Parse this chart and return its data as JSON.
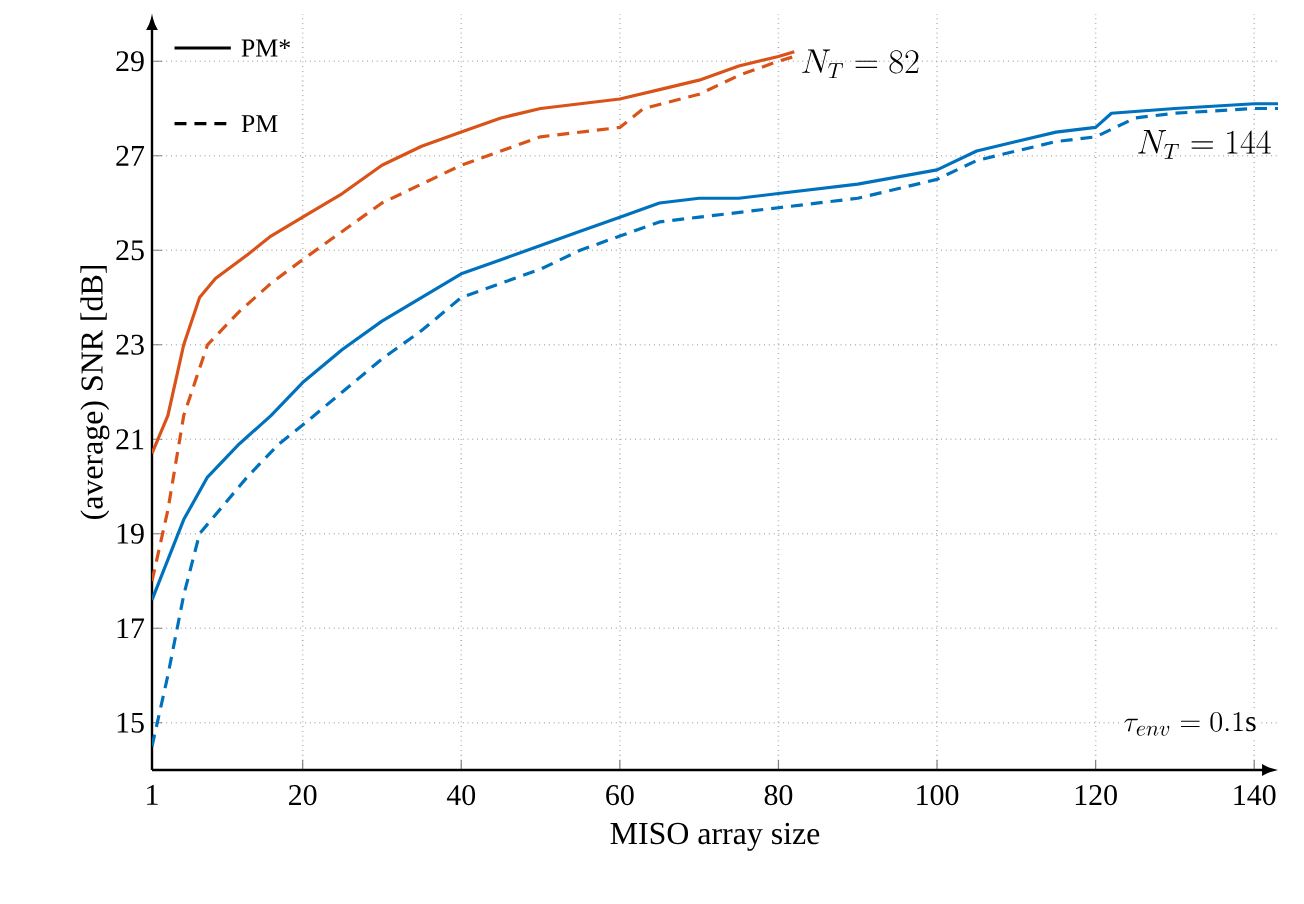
{
  "chart_data": {
    "type": "line",
    "xlabel": "MISO array size",
    "ylabel": "(average) SNR [dB]",
    "xlim": [
      1,
      143
    ],
    "ylim": [
      14,
      30
    ],
    "xticks": [
      1,
      20,
      40,
      60,
      80,
      100,
      120,
      140
    ],
    "yticks": [
      15,
      17,
      19,
      21,
      23,
      25,
      27,
      29
    ],
    "grid": true,
    "marker": "none",
    "series": [
      {
        "color": "#d95319",
        "line_style": "solid",
        "x": [
          1,
          3,
          5,
          7,
          9,
          13,
          16,
          20,
          25,
          30,
          35,
          40,
          45,
          50,
          55,
          60,
          65,
          70,
          75,
          80,
          82
        ],
        "values": [
          20.7,
          21.5,
          23,
          24,
          24.4,
          24.9,
          25.3,
          25.7,
          26.2,
          26.8,
          27.2,
          27.5,
          27.8,
          28,
          28.1,
          28.2,
          28.4,
          28.6,
          28.9,
          29.1,
          29.2
        ]
      },
      {
        "color": "#d95319",
        "line_style": "dashed",
        "x": [
          1,
          3,
          5,
          8,
          12,
          16,
          20,
          25,
          30,
          35,
          40,
          45,
          50,
          55,
          60,
          63,
          70,
          75,
          80,
          82
        ],
        "values": [
          18,
          19.5,
          21.5,
          23,
          23.7,
          24.3,
          24.8,
          25.4,
          26,
          26.4,
          26.8,
          27.1,
          27.4,
          27.5,
          27.6,
          28,
          28.3,
          28.7,
          29,
          29.1
        ]
      },
      {
        "color": "#0072bd",
        "line_style": "solid",
        "x": [
          1,
          5,
          8,
          12,
          16,
          20,
          25,
          30,
          35,
          40,
          45,
          50,
          55,
          60,
          65,
          70,
          75,
          80,
          90,
          100,
          105,
          110,
          115,
          120,
          122,
          130,
          140,
          143
        ],
        "values": [
          17.6,
          19.3,
          20.2,
          20.9,
          21.5,
          22.2,
          22.9,
          23.5,
          24,
          24.5,
          24.8,
          25.1,
          25.4,
          25.7,
          26,
          26.1,
          26.1,
          26.2,
          26.4,
          26.7,
          27.1,
          27.3,
          27.5,
          27.6,
          27.9,
          28,
          28.1,
          28.1
        ]
      },
      {
        "color": "#0072bd",
        "line_style": "dashed",
        "x": [
          1,
          3,
          5,
          7,
          10,
          13,
          17,
          20,
          25,
          30,
          35,
          40,
          45,
          50,
          55,
          60,
          65,
          70,
          80,
          90,
          100,
          105,
          110,
          115,
          120,
          125,
          130,
          140,
          143
        ],
        "values": [
          14.5,
          16,
          17.7,
          19,
          19.6,
          20.2,
          20.9,
          21.3,
          22,
          22.7,
          23.3,
          24,
          24.3,
          24.6,
          25,
          25.3,
          25.6,
          25.7,
          25.9,
          26.1,
          26.5,
          26.9,
          27.1,
          27.3,
          27.4,
          27.8,
          27.9,
          28,
          28
        ]
      }
    ],
    "annotations": [
      {
        "text": "N_T = 82",
        "x": 82,
        "y": 29.2
      },
      {
        "text": "N_T = 144",
        "x": 143,
        "y": 28.1
      },
      "\\tau_{env} = 0.1\\mathrm{s}",
      "PM*",
      "PM"
    ]
  }
}
